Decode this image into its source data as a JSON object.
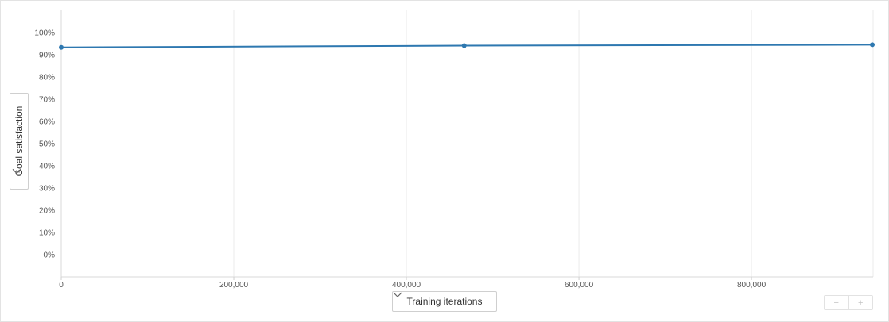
{
  "chart_data": {
    "type": "line",
    "xlabel": "Training iterations",
    "ylabel": "Goal satisfaction",
    "xlim": [
      0,
      940000
    ],
    "ylim": [
      -10,
      110
    ],
    "x_ticks": [
      0,
      200000,
      400000,
      600000,
      800000
    ],
    "x_tick_labels": [
      "0",
      "200,000",
      "400,000",
      "600,000",
      "800,000"
    ],
    "y_ticks": [
      0,
      10,
      20,
      30,
      40,
      50,
      60,
      70,
      80,
      90,
      100
    ],
    "y_tick_labels": [
      "0%",
      "10%",
      "20%",
      "30%",
      "40%",
      "50%",
      "60%",
      "70%",
      "80%",
      "90%",
      "100%"
    ],
    "grid": {
      "vertical": true,
      "horizontal": false
    },
    "series": [
      {
        "x": [
          0,
          467000,
          940000
        ],
        "y": [
          93.3,
          94.1,
          94.5
        ],
        "color": "#2e78b0"
      }
    ]
  },
  "controls": {
    "y_selector": {
      "label": "Goal satisfaction",
      "icon": "chevron-right-icon"
    },
    "x_selector": {
      "label": "Training iterations",
      "icon": "chevron-down-icon"
    },
    "zoom_out": {
      "label": "−",
      "icon": "minus-icon"
    },
    "zoom_in": {
      "label": "+",
      "icon": "plus-icon"
    }
  }
}
